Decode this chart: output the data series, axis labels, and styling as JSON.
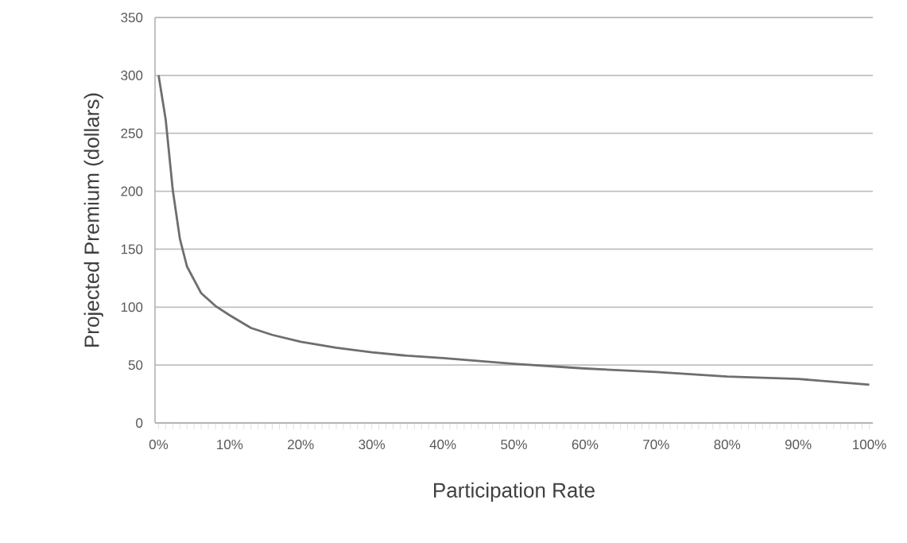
{
  "chart_data": {
    "type": "line",
    "xlabel": "Participation Rate",
    "ylabel": "Projected Premium (dollars)",
    "x": [
      0,
      1,
      2,
      3,
      4,
      6,
      8,
      10,
      13,
      16,
      20,
      25,
      30,
      35,
      40,
      50,
      60,
      70,
      80,
      90,
      100
    ],
    "values": [
      300,
      262,
      201,
      159,
      135,
      112,
      101,
      93,
      82,
      76,
      70,
      65,
      61,
      58,
      56,
      51,
      47,
      44,
      40,
      38,
      33
    ],
    "color": "#6e6e6e",
    "xlim": [
      -0.5,
      100.5
    ],
    "xticks": [
      {
        "value": 0,
        "label": "0%"
      },
      {
        "value": 10,
        "label": "10%"
      },
      {
        "value": 20,
        "label": "20%"
      },
      {
        "value": 30,
        "label": "30%"
      },
      {
        "value": 40,
        "label": "40%"
      },
      {
        "value": 50,
        "label": "50%"
      },
      {
        "value": 60,
        "label": "60%"
      },
      {
        "value": 70,
        "label": "70%"
      },
      {
        "value": 80,
        "label": "80%"
      },
      {
        "value": 90,
        "label": "90%"
      },
      {
        "value": 100,
        "label": "100%"
      }
    ],
    "ylim": [
      0,
      350
    ],
    "yticks": [
      0,
      50,
      100,
      150,
      200,
      250,
      300,
      350
    ],
    "grid": "y"
  }
}
